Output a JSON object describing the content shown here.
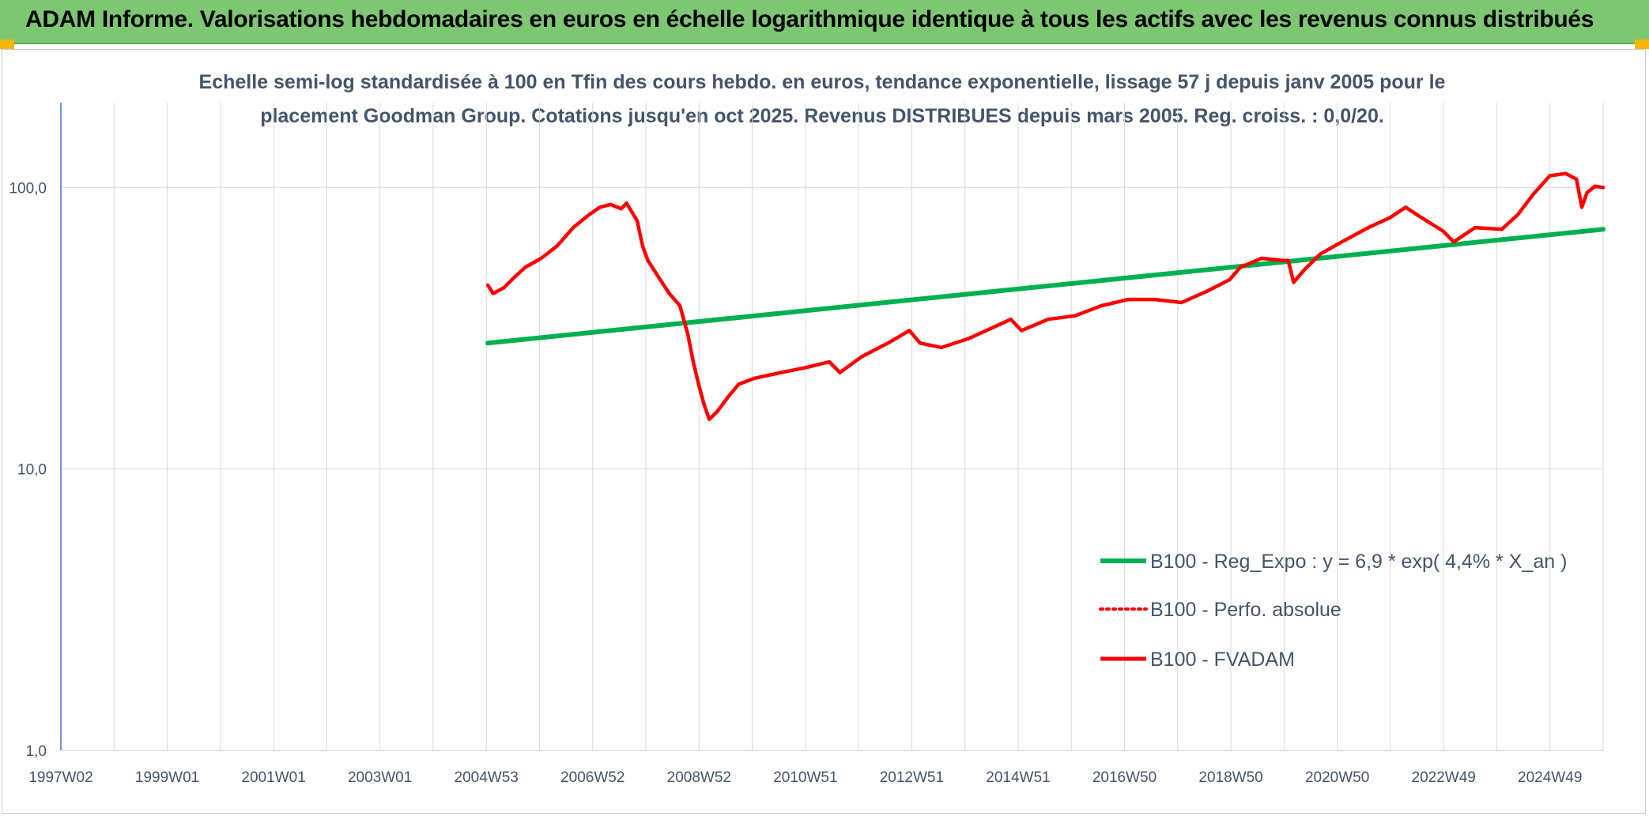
{
  "header": {
    "title": "ADAM Informe. Valorisations hebdomadaires en euros en échelle logarithmique identique à tous les actifs avec les revenus connus distribués"
  },
  "colors": {
    "header_bg": "#7dc772",
    "accent": "#f2b800",
    "trend": "#00b050",
    "fvadam": "#ff0000"
  },
  "chart_data": {
    "type": "line",
    "title_line1": "Echelle semi-log standardisée à 100 en Tfin des cours hebdo. en euros, tendance exponentielle, lissage 57 j depuis janv 2005 pour le",
    "title_line2": "placement Goodman Group. Cotations jusqu'en oct 2025. Revenus DISTRIBUES depuis mars 2005. Reg. croiss. : 0,0/20.",
    "y_scale": "log",
    "ylim": [
      1,
      200
    ],
    "xlim": [
      1997.0,
      2025.9
    ],
    "grid": true,
    "legend_position": "bottom-right",
    "x_tick_labels": [
      "1997W02",
      "1999W01",
      "2001W01",
      "2003W01",
      "2004W53",
      "2006W52",
      "2008W52",
      "2010W51",
      "2012W51",
      "2014W51",
      "2016W50",
      "2018W50",
      "2020W50",
      "2022W49",
      "2024W49"
    ],
    "y_tick_labels": [
      {
        "value": 100,
        "label": "100,0"
      },
      {
        "value": 10,
        "label": "10,0"
      },
      {
        "value": 1,
        "label": "1,0"
      }
    ],
    "legend": [
      {
        "label": "B100 - Reg_Expo : y = 6,9 * exp( 4,4% *  X_an )",
        "color": "#00b050",
        "style": "solid-thick"
      },
      {
        "label": "B100 - Perfo. absolue",
        "color": "#ff0000",
        "style": "dotted"
      },
      {
        "label": "B100 - FVADAM",
        "color": "#ff0000",
        "style": "solid"
      }
    ],
    "series": [
      {
        "name": "B100 - Reg_Expo : y = 6,9 * exp( 4,4% *  X_an )",
        "color": "#00b050",
        "x": [
          2005.0,
          2025.9
        ],
        "y": [
          28,
          71
        ]
      },
      {
        "name": "B100 - FVADAM",
        "color": "#ff0000",
        "x": [
          2005.0,
          2005.1,
          2005.3,
          2005.5,
          2005.7,
          2006.0,
          2006.3,
          2006.6,
          2006.9,
          2007.1,
          2007.3,
          2007.5,
          2007.6,
          2007.8,
          2007.9,
          2008.0,
          2008.2,
          2008.4,
          2008.6,
          2008.75,
          2008.85,
          2008.95,
          2009.05,
          2009.15,
          2009.3,
          2009.5,
          2009.7,
          2010.0,
          2010.5,
          2011.0,
          2011.4,
          2011.6,
          2012.0,
          2012.5,
          2012.9,
          2013.1,
          2013.5,
          2014.0,
          2014.5,
          2014.8,
          2015.0,
          2015.5,
          2016.0,
          2016.5,
          2017.0,
          2017.5,
          2018.0,
          2018.5,
          2018.9,
          2019.1,
          2019.5,
          2019.9,
          2020.0,
          2020.1,
          2020.3,
          2020.6,
          2021.0,
          2021.5,
          2021.9,
          2022.2,
          2022.5,
          2022.9,
          2023.1,
          2023.5,
          2024.0,
          2024.3,
          2024.6,
          2024.9,
          2025.2,
          2025.4,
          2025.5,
          2025.6,
          2025.75,
          2025.9
        ],
        "y": [
          45,
          42,
          44,
          48,
          52,
          56,
          62,
          72,
          80,
          85,
          87,
          84,
          88,
          76,
          62,
          55,
          48,
          42,
          38,
          30,
          24,
          20,
          17,
          15,
          16,
          18,
          20,
          21,
          22,
          23,
          24,
          22,
          25,
          28,
          31,
          28,
          27,
          29,
          32,
          34,
          31,
          34,
          35,
          38,
          40,
          40,
          39,
          43,
          47,
          52,
          56,
          55,
          55,
          46,
          51,
          58,
          64,
          72,
          78,
          85,
          78,
          70,
          64,
          72,
          71,
          80,
          95,
          110,
          112,
          107,
          85,
          96,
          101,
          100
        ]
      }
    ]
  }
}
